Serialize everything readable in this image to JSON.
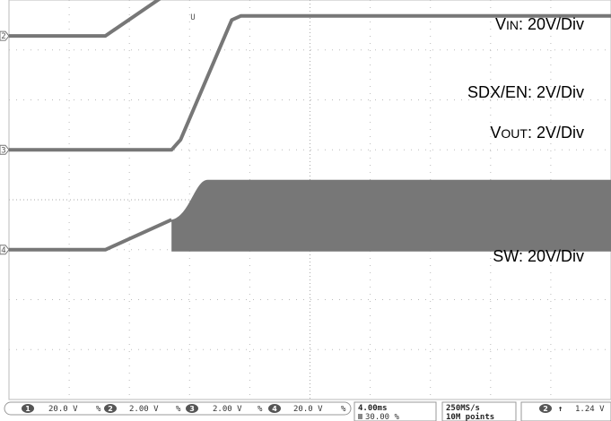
{
  "chart_data": {
    "type": "line",
    "title": "",
    "xlabel": "",
    "ylabel": "",
    "grid": true,
    "time_per_div": "4.00ms",
    "trigger_marker": "U",
    "divisions": {
      "x": 10,
      "y": 8
    },
    "series": [
      {
        "name_main": "V",
        "name_small": "IN",
        "scale": ": 20V/Div",
        "marker": "1",
        "color": "#777777",
        "ground_div": 5.53,
        "points": [
          [
            0,
            0
          ],
          [
            1.6,
            0
          ],
          [
            3.3,
            1.4
          ],
          [
            10,
            1.4
          ]
        ]
      },
      {
        "name_main": "SDX/EN",
        "name_small": "",
        "scale": ": 2V/Div",
        "marker": "2",
        "color": "#777777",
        "ground_div": 3.28,
        "points": [
          [
            0,
            0
          ],
          [
            1.6,
            0
          ],
          [
            3.3,
            1.4
          ],
          [
            10,
            1.4
          ]
        ]
      },
      {
        "name_main": "V",
        "name_small": "OUT",
        "scale": ": 2V/Div",
        "marker": "3",
        "color": "#777777",
        "ground_div": 1.0,
        "points": [
          [
            0,
            0
          ],
          [
            2.7,
            0
          ],
          [
            2.85,
            0.2
          ],
          [
            3.7,
            2.6
          ],
          [
            3.85,
            2.68
          ],
          [
            10,
            2.68
          ]
        ]
      },
      {
        "name_main": "SW",
        "name_small": "",
        "scale": ": 20V/Div",
        "marker": "4",
        "color": "#777777",
        "ground_div": -1.0,
        "points": [
          [
            0,
            0
          ],
          [
            1.6,
            0
          ],
          [
            2.7,
            0.6
          ]
        ],
        "switching": {
          "start": 2.7,
          "ramp_end": 3.3,
          "amplitude": 1.4
        }
      }
    ]
  },
  "status_bar": {
    "ch1": {
      "num": "1",
      "scale": "20.0 V",
      "coupling": "%"
    },
    "ch2": {
      "num": "2",
      "scale": "2.00 V",
      "coupling": "%"
    },
    "ch3": {
      "num": "3",
      "scale": "2.00 V",
      "coupling": "%"
    },
    "ch4": {
      "num": "4",
      "scale": "20.0 V",
      "coupling": "%"
    },
    "timebase": "4.00ms",
    "position": "30.00 %",
    "sample_rate": "250MS/s",
    "record_length": "10M points",
    "trigger": {
      "source": "2",
      "slope": "↑",
      "level": "1.24 V"
    }
  }
}
